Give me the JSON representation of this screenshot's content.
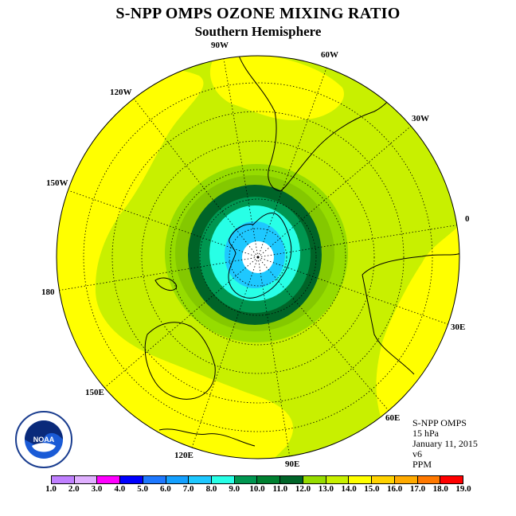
{
  "title": "S-NPP OMPS OZONE MIXING RATIO",
  "subtitle": "Southern Hemisphere",
  "longitude_labels": [
    "90W",
    "60W",
    "30W",
    "0",
    "30E",
    "60E",
    "90E",
    "120E",
    "150E",
    "180",
    "150W",
    "120W"
  ],
  "info": {
    "instrument": "S-NPP OMPS",
    "level": "15 hPa",
    "date": "January 11, 2015",
    "version": "v6",
    "units": "PPM"
  },
  "colorbar": {
    "ticks": [
      "1.0",
      "2.0",
      "3.0",
      "4.0",
      "5.0",
      "6.0",
      "7.0",
      "8.0",
      "9.0",
      "10.0",
      "11.0",
      "12.0",
      "13.0",
      "14.0",
      "15.0",
      "16.0",
      "17.0",
      "18.0",
      "19.0"
    ],
    "colors": [
      "#c080ff",
      "#e0b0ff",
      "#ff00ff",
      "#0000ff",
      "#1e78ff",
      "#14a0ff",
      "#1ec8ff",
      "#28ffe6",
      "#009650",
      "#008030",
      "#006428",
      "#96dc00",
      "#c8f000",
      "#ffff00",
      "#ffd200",
      "#ffaa00",
      "#ff7800",
      "#ff0000",
      "#8b5a2b"
    ]
  },
  "ozone_levels": [
    {
      "range": "12.0-13.0",
      "color": "#96dc00"
    },
    {
      "range": "11.0-12.0",
      "color": "#84c800"
    },
    {
      "range": "10.0-11.0",
      "color": "#006428"
    },
    {
      "range": "9.0-10.0",
      "color": "#009650"
    },
    {
      "range": "8.0-9.0",
      "color": "#28ffe6"
    },
    {
      "range": "7.0-8.0",
      "color": "#1ec8ff"
    }
  ],
  "logo_text": "NOAA",
  "colors": {
    "background_field": "#c8f000",
    "high_field": "#ffff00"
  }
}
